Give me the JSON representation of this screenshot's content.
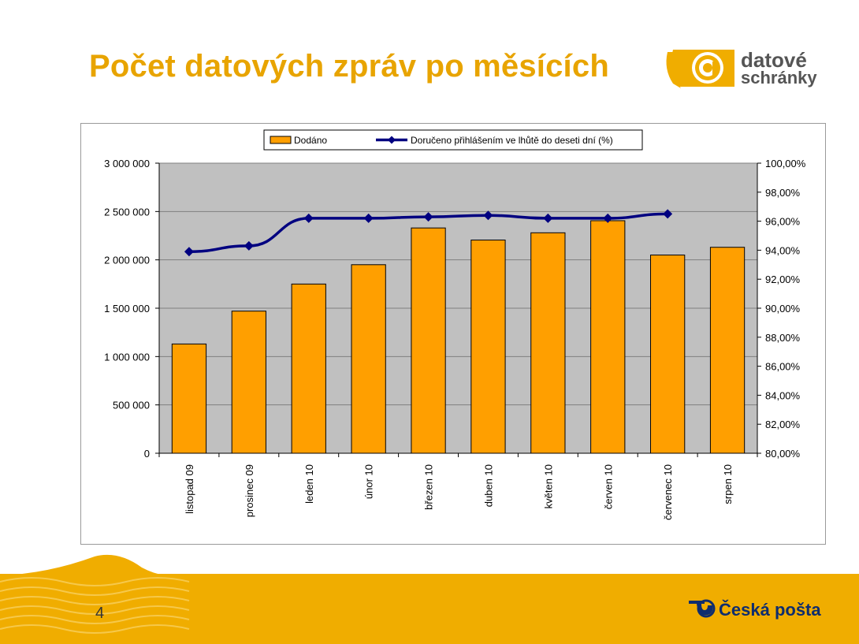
{
  "slide": {
    "title": "Počet datových zpráv po měsících",
    "page_number": "4",
    "brand_logo": {
      "line1": "datové",
      "line2": "schránky",
      "icon": "at-sign-icon"
    },
    "footer_logo": {
      "text": "Česká pošta",
      "icon": "post-horn-icon"
    }
  },
  "colors": {
    "title": "#e8a400",
    "bar": "#ff9f00",
    "line": "#000080",
    "plot_bg": "#c0c0c0",
    "footer": "#f0ad00"
  },
  "chart_data": {
    "type": "bar",
    "categories": [
      "listopad 09",
      "prosinec 09",
      "leden 10",
      "únor 10",
      "březen 10",
      "duben 10",
      "květen 10",
      "červen 10",
      "červenec 10",
      "srpen 10"
    ],
    "series": [
      {
        "name": "Dodáno",
        "type": "bar",
        "axis": "left",
        "values": [
          1130000,
          1470000,
          1750000,
          1950000,
          2330000,
          2205000,
          2280000,
          2405000,
          2050000,
          2130000
        ]
      },
      {
        "name": "Doručeno přihlášením ve lhůtě do deseti dní (%)",
        "type": "line",
        "axis": "right",
        "values": [
          93.9,
          94.3,
          96.2,
          96.2,
          96.3,
          96.4,
          96.2,
          96.2,
          96.5,
          null
        ]
      }
    ],
    "y_left": {
      "min": 0,
      "max": 3000000,
      "ticks": [
        "0",
        "500 000",
        "1 000 000",
        "1 500 000",
        "2 000 000",
        "2 500 000",
        "3 000 000"
      ]
    },
    "y_right": {
      "min": 80,
      "max": 100,
      "ticks": [
        "80,00%",
        "82,00%",
        "84,00%",
        "86,00%",
        "88,00%",
        "90,00%",
        "92,00%",
        "94,00%",
        "96,00%",
        "98,00%",
        "100,00%"
      ]
    },
    "grid": true,
    "legend_position": "top-center"
  }
}
